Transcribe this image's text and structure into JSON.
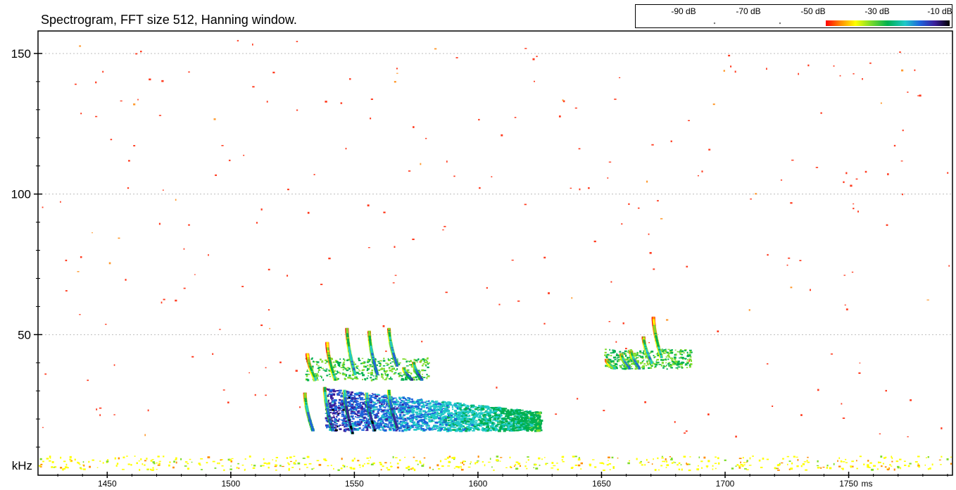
{
  "chart_data": {
    "type": "heatmap",
    "title": "Spectrogram, FFT size 512, Hanning window.",
    "xlabel": "ms",
    "ylabel": "kHz",
    "xlim": [
      1422,
      1792
    ],
    "ylim": [
      0,
      158
    ],
    "x_ticks": [
      1450,
      1500,
      1550,
      1600,
      1650,
      1700,
      1750
    ],
    "y_ticks": [
      50,
      100,
      150
    ],
    "y_gridlines": true,
    "colorbar": {
      "labels": [
        "-90 dB",
        "-70 dB",
        "-50 dB",
        "-30 dB",
        "-10 dB"
      ],
      "colors": [
        "#ff0000",
        "#ff8c00",
        "#ffff00",
        "#7fdc2a",
        "#00b050",
        "#1ec8c8",
        "#1e64dc",
        "#3c1e9a",
        "#000000"
      ],
      "placement": "top-right"
    },
    "calls": [
      {
        "t": 1530,
        "f_high": 29,
        "f_low": 16,
        "level_db": -30
      },
      {
        "t": 1531,
        "f_high": 43,
        "f_low": 34,
        "level_db": -45
      },
      {
        "t": 1538,
        "f_high": 31,
        "f_low": 16,
        "level_db": -25
      },
      {
        "t": 1539,
        "f_high": 47,
        "f_low": 34,
        "level_db": -45
      },
      {
        "t": 1546,
        "f_high": 30,
        "f_low": 15,
        "level_db": -15
      },
      {
        "t": 1547,
        "f_high": 52,
        "f_low": 36,
        "level_db": -35
      },
      {
        "t": 1555,
        "f_high": 29,
        "f_low": 16,
        "level_db": -15
      },
      {
        "t": 1556,
        "f_high": 51,
        "f_low": 36,
        "level_db": -30
      },
      {
        "t": 1564,
        "f_high": 30,
        "f_low": 17,
        "level_db": -20
      },
      {
        "t": 1564,
        "f_high": 52,
        "f_low": 39,
        "level_db": -30
      },
      {
        "t": 1570,
        "f_high": 38,
        "f_low": 34,
        "level_db": -25
      },
      {
        "t": 1574,
        "f_high": 40,
        "f_low": 34,
        "level_db": -25
      },
      {
        "t": 1652,
        "f_high": 41,
        "f_low": 38,
        "level_db": -40
      },
      {
        "t": 1658,
        "f_high": 43,
        "f_low": 38,
        "level_db": -30
      },
      {
        "t": 1662,
        "f_high": 44,
        "f_low": 38,
        "level_db": -30
      },
      {
        "t": 1667,
        "f_high": 49,
        "f_low": 40,
        "level_db": -35
      },
      {
        "t": 1671,
        "f_high": 56,
        "f_low": 42,
        "level_db": -45
      }
    ],
    "energy_regions": [
      {
        "t_start": 1538,
        "t_end": 1625,
        "f_low": 16,
        "f_high": 31,
        "level_db": -35
      },
      {
        "t_start": 1530,
        "t_end": 1580,
        "f_low": 34,
        "f_high": 42,
        "level_db": -55
      },
      {
        "t_start": 1651,
        "t_end": 1686,
        "f_low": 38,
        "f_high": 45,
        "level_db": -55
      },
      {
        "t_start": 1422,
        "t_end": 1792,
        "f_low": 2,
        "f_high": 7,
        "level_db": -70
      }
    ]
  }
}
